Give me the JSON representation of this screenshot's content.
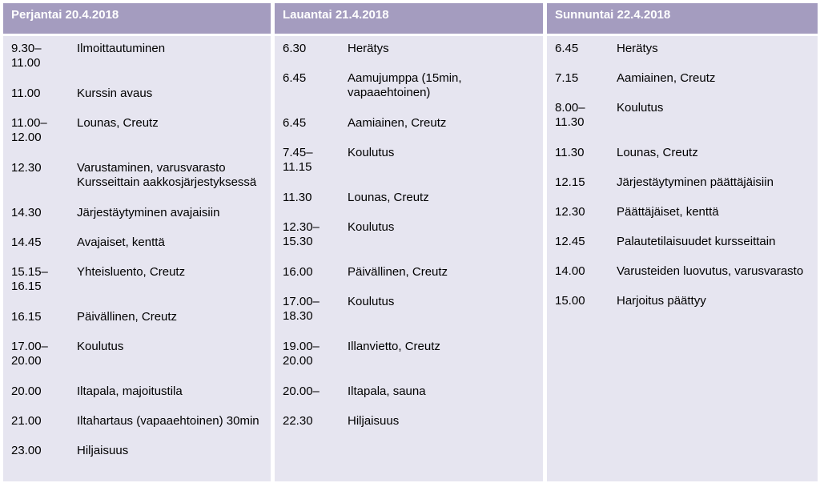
{
  "days": [
    {
      "header": "Perjantai 20.4.2018",
      "entries": [
        {
          "time": "9.30–\n11.00",
          "activity": "Ilmoittautuminen"
        },
        {
          "time": "11.00",
          "activity": "Kurssin avaus"
        },
        {
          "time": "11.00–\n12.00",
          "activity": "Lounas, Creutz"
        },
        {
          "time": "12.30",
          "activity": "Varustaminen, varusvarasto\nKursseittain aakkosjärjestyksessä"
        },
        {
          "time": "14.30",
          "activity": "Järjestäytyminen avajaisiin"
        },
        {
          "time": "14.45",
          "activity": "Avajaiset, kenttä"
        },
        {
          "time": "15.15–\n16.15",
          "activity": "Yhteisluento, Creutz"
        },
        {
          "time": "16.15",
          "activity": "Päivällinen, Creutz"
        },
        {
          "time": "17.00–\n20.00",
          "activity": "Koulutus"
        },
        {
          "time": "20.00",
          "activity": "Iltapala, majoitustila"
        },
        {
          "time": "21.00",
          "activity": "Iltahartaus (vapaaehtoinen) 30min"
        },
        {
          "time": "23.00",
          "activity": "Hiljaisuus"
        }
      ]
    },
    {
      "header": "Lauantai 21.4.2018",
      "entries": [
        {
          "time": "6.30",
          "activity": "Herätys"
        },
        {
          "time": "6.45",
          "activity": "Aamujumppa (15min,\nvapaaehtoinen)"
        },
        {
          "time": "6.45",
          "activity": "Aamiainen, Creutz"
        },
        {
          "time": "7.45–\n11.15",
          "activity": "Koulutus"
        },
        {
          "time": "11.30",
          "activity": "Lounas, Creutz"
        },
        {
          "time": "12.30–\n15.30",
          "activity": "Koulutus"
        },
        {
          "time": "16.00",
          "activity": "Päivällinen, Creutz"
        },
        {
          "time": "17.00–\n18.30",
          "activity": "Koulutus"
        },
        {
          "time": "19.00–\n20.00",
          "activity": "Illanvietto, Creutz"
        },
        {
          "time": "20.00–",
          "activity": "Iltapala, sauna"
        },
        {
          "time": "22.30",
          "activity": "Hiljaisuus"
        }
      ]
    },
    {
      "header": "Sunnuntai 22.4.2018",
      "entries": [
        {
          "time": "6.45",
          "activity": "Herätys"
        },
        {
          "time": "7.15",
          "activity": "Aamiainen, Creutz"
        },
        {
          "time": "8.00–\n11.30",
          "activity": "Koulutus"
        },
        {
          "time": "11.30",
          "activity": "Lounas, Creutz"
        },
        {
          "time": "12.15",
          "activity": "Järjestäytyminen päättäjäisiin"
        },
        {
          "time": "12.30",
          "activity": "Päättäjäiset, kenttä"
        },
        {
          "time": "12.45",
          "activity": "Palautetilaisuudet kursseittain"
        },
        {
          "time": "14.00",
          "activity": "Varusteiden luovutus, varusvarasto"
        },
        {
          "time": "15.00",
          "activity": "Harjoitus päättyy"
        }
      ]
    }
  ]
}
